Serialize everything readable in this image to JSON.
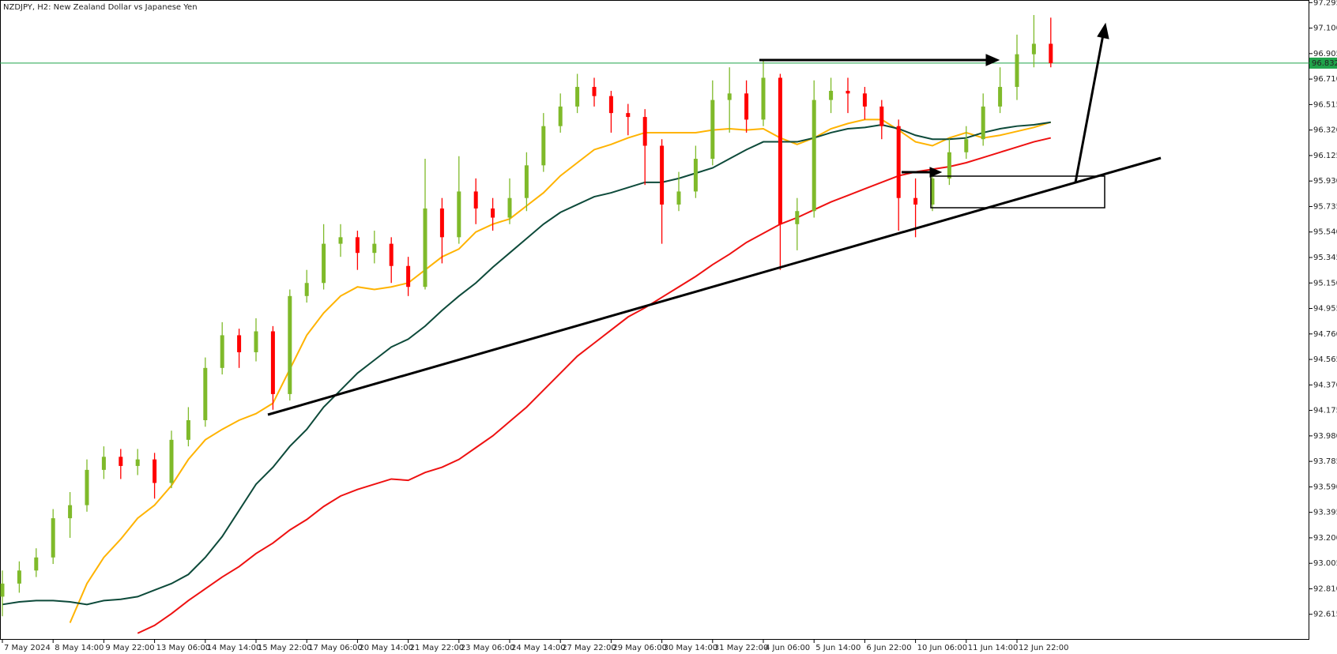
{
  "chart_data": {
    "type": "candlestick",
    "title": "NZDJPY, H2:  New Zealand Dollar vs Japanese Yen",
    "categories": [
      "7 May 2024",
      null,
      null,
      "8 May 14:00",
      null,
      null,
      "9 May 22:00",
      null,
      null,
      "13 May 06:00",
      null,
      null,
      "14 May 14:00",
      null,
      null,
      "15 May 22:00",
      null,
      null,
      "17 May 06:00",
      null,
      null,
      "20 May 14:00",
      null,
      null,
      "21 May 22:00",
      null,
      null,
      "23 May 06:00",
      null,
      null,
      "24 May 14:00",
      null,
      null,
      "27 May 22:00",
      null,
      null,
      "29 May 06:00",
      null,
      null,
      "30 May 14:00",
      null,
      null,
      "31 May 22:00",
      null,
      null,
      "4 Jun 06:00",
      null,
      null,
      "5 Jun 14:00",
      null,
      null,
      "6 Jun 22:00",
      null,
      null,
      "10 Jun 06:00",
      null,
      null,
      "11 Jun 14:00",
      null,
      null,
      "12 Jun 22:00",
      null,
      null
    ],
    "open": [
      92.75,
      92.85,
      92.95,
      93.05,
      93.35,
      93.45,
      93.72,
      93.82,
      93.75,
      93.8,
      93.62,
      93.95,
      94.1,
      94.5,
      94.75,
      94.62,
      94.78,
      94.3,
      95.05,
      95.15,
      95.45,
      95.5,
      95.38,
      95.45,
      95.28,
      95.12,
      95.72,
      95.5,
      95.85,
      95.72,
      95.65,
      95.8,
      96.05,
      96.35,
      96.5,
      96.65,
      96.58,
      96.45,
      96.42,
      96.2,
      95.75,
      95.85,
      96.1,
      96.55,
      96.6,
      96.4,
      96.72,
      95.6,
      95.7,
      96.55,
      96.62,
      96.6,
      96.5,
      96.35,
      95.8,
      95.75,
      95.95,
      96.15,
      96.25,
      96.5,
      96.65,
      96.9,
      96.98
    ],
    "high": [
      92.95,
      93.02,
      93.12,
      93.42,
      93.55,
      93.8,
      93.9,
      93.88,
      93.88,
      93.85,
      94.02,
      94.2,
      94.58,
      94.85,
      94.8,
      94.88,
      94.82,
      95.1,
      95.25,
      95.6,
      95.6,
      95.55,
      95.55,
      95.5,
      95.35,
      96.1,
      95.8,
      96.12,
      95.95,
      95.8,
      95.95,
      96.15,
      96.45,
      96.6,
      96.75,
      96.72,
      96.62,
      96.52,
      96.48,
      96.25,
      96.0,
      96.2,
      96.7,
      96.8,
      96.7,
      96.85,
      96.75,
      95.8,
      96.7,
      96.72,
      96.72,
      96.65,
      96.55,
      96.4,
      95.95,
      96.02,
      96.25,
      96.35,
      96.6,
      96.8,
      97.05,
      97.2,
      97.18
    ],
    "low": [
      92.6,
      92.78,
      92.9,
      93.0,
      93.2,
      93.4,
      93.65,
      93.65,
      93.68,
      93.5,
      93.58,
      93.9,
      94.05,
      94.45,
      94.5,
      94.55,
      94.18,
      94.25,
      95.0,
      95.1,
      95.35,
      95.25,
      95.3,
      95.15,
      95.05,
      95.1,
      95.3,
      95.45,
      95.6,
      95.55,
      95.6,
      95.7,
      96.0,
      96.3,
      96.45,
      96.5,
      96.3,
      96.28,
      95.9,
      95.45,
      95.7,
      95.8,
      96.05,
      96.3,
      96.3,
      96.35,
      95.25,
      95.4,
      95.65,
      96.45,
      96.45,
      96.4,
      96.25,
      95.55,
      95.5,
      95.7,
      95.9,
      96.1,
      96.2,
      96.45,
      96.55,
      96.8,
      96.8
    ],
    "close": [
      92.85,
      92.95,
      93.05,
      93.35,
      93.45,
      93.72,
      93.82,
      93.75,
      93.8,
      93.62,
      93.95,
      94.1,
      94.5,
      94.75,
      94.62,
      94.78,
      94.3,
      95.05,
      95.15,
      95.45,
      95.5,
      95.38,
      95.45,
      95.28,
      95.12,
      95.72,
      95.5,
      95.85,
      95.72,
      95.65,
      95.8,
      96.05,
      96.35,
      96.5,
      96.65,
      96.58,
      96.45,
      96.42,
      96.2,
      95.75,
      95.85,
      96.1,
      96.55,
      96.6,
      96.4,
      96.72,
      95.6,
      95.7,
      96.55,
      96.62,
      96.6,
      96.5,
      96.35,
      95.8,
      95.75,
      95.95,
      96.15,
      96.25,
      96.5,
      96.65,
      96.9,
      96.98,
      96.832
    ],
    "up_color": "#7fba2a",
    "down_color": "#ff0000",
    "lines": [
      {
        "color": "#ffb300",
        "values": [
          null,
          null,
          null,
          null,
          92.55,
          92.85,
          93.05,
          93.19,
          93.35,
          93.45,
          93.6,
          93.8,
          93.95,
          94.03,
          94.1,
          94.15,
          94.23,
          94.49,
          94.75,
          94.92,
          95.05,
          95.12,
          95.1,
          95.12,
          95.15,
          95.25,
          95.35,
          95.41,
          95.54,
          95.6,
          95.64,
          95.74,
          95.84,
          95.97,
          96.07,
          96.17,
          96.21,
          96.26,
          96.3,
          96.3,
          96.3,
          96.3,
          96.32,
          96.33,
          96.32,
          96.33,
          96.26,
          96.21,
          96.26,
          96.33,
          96.37,
          96.4,
          96.4,
          96.32,
          96.23,
          96.2,
          96.26,
          96.3,
          96.26,
          96.28,
          96.31,
          96.34,
          96.38
        ]
      },
      {
        "color": "#0d4a3a",
        "values": [
          92.69,
          92.71,
          92.72,
          92.72,
          92.71,
          92.69,
          92.72,
          92.73,
          92.75,
          92.8,
          92.85,
          92.92,
          93.05,
          93.21,
          93.41,
          93.61,
          93.74,
          93.9,
          94.03,
          94.2,
          94.33,
          94.46,
          94.56,
          94.66,
          94.72,
          94.82,
          94.94,
          95.05,
          95.15,
          95.27,
          95.38,
          95.49,
          95.6,
          95.69,
          95.75,
          95.81,
          95.84,
          95.88,
          95.92,
          95.92,
          95.95,
          95.99,
          96.03,
          96.1,
          96.17,
          96.23,
          96.23,
          96.23,
          96.26,
          96.3,
          96.33,
          96.34,
          96.36,
          96.33,
          96.28,
          96.25,
          96.25,
          96.26,
          96.3,
          96.33,
          96.35,
          96.36,
          96.38
        ]
      },
      {
        "color": "#ee1111",
        "values": [
          null,
          null,
          null,
          null,
          null,
          null,
          null,
          null,
          92.47,
          92.53,
          92.62,
          92.72,
          92.81,
          92.9,
          92.98,
          93.08,
          93.16,
          93.26,
          93.34,
          93.44,
          93.52,
          93.57,
          93.61,
          93.65,
          93.64,
          93.7,
          93.74,
          93.8,
          93.89,
          93.98,
          94.09,
          94.2,
          94.33,
          94.46,
          94.59,
          94.69,
          94.79,
          94.89,
          94.96,
          95.04,
          95.12,
          95.2,
          95.29,
          95.37,
          95.46,
          95.53,
          95.6,
          95.65,
          95.71,
          95.77,
          95.82,
          95.87,
          95.92,
          95.97,
          96.0,
          96.02,
          96.04,
          96.07,
          96.11,
          96.15,
          96.19,
          96.23,
          96.26
        ]
      }
    ],
    "ylim": [
      92.42,
      97.315
    ],
    "yticks": [
      97.295,
      {
        "value": 97.1,
        "label": "97.100"
      },
      96.905,
      {
        "value": 96.71,
        "label": "96.710"
      },
      96.515,
      {
        "value": 96.32,
        "label": "96.320"
      },
      96.125,
      {
        "value": 95.93,
        "label": "95.930"
      },
      95.735,
      {
        "value": 95.54,
        "label": "95.540"
      },
      95.345,
      {
        "value": 95.15,
        "label": "95.150"
      },
      94.955,
      {
        "value": 94.76,
        "label": "94.760"
      },
      94.565,
      {
        "value": 94.37,
        "label": "94.370"
      },
      94.175,
      {
        "value": 93.98,
        "label": "93.980"
      },
      93.785,
      {
        "value": 93.59,
        "label": "93.590"
      },
      93.395,
      {
        "value": 93.2,
        "label": "93.200"
      },
      93.005,
      {
        "value": 92.81,
        "label": "92.810"
      },
      92.615
    ],
    "price_line": 96.832,
    "price_line_color": "#1fa34a",
    "grid": false
  }
}
